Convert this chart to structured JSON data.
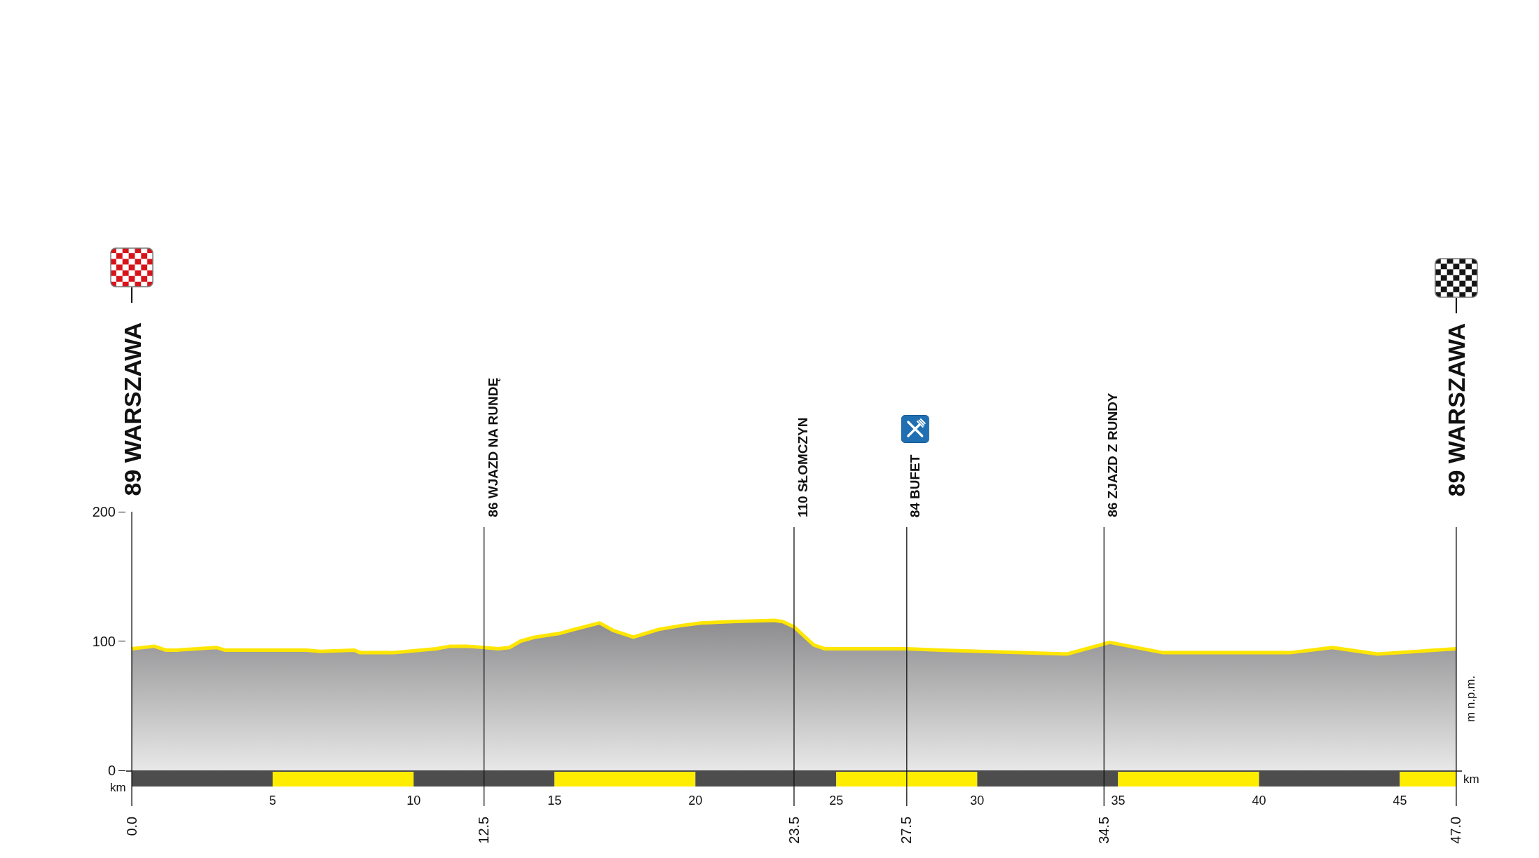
{
  "chart_data": {
    "type": "area",
    "ylabel": "m n.p.m.",
    "x2label": "km",
    "x": [
      0,
      0.8,
      1.2,
      1.6,
      3.0,
      3.3,
      4.3,
      6.2,
      6.7,
      7.9,
      8.1,
      8.8,
      9.3,
      10.8,
      11.3,
      11.9,
      12.5,
      13.0,
      13.4,
      13.8,
      14.3,
      15.2,
      15.7,
      16.6,
      17.1,
      17.8,
      18.7,
      19.5,
      20.2,
      21.3,
      22.8,
      23.1,
      23.5,
      23.9,
      24.2,
      24.6,
      27.5,
      28.7,
      33.2,
      34.7,
      36.6,
      41.1,
      42.6,
      44.2,
      47
    ],
    "series": [
      {
        "color": "#8c8c8e",
        "values": [
          94,
          96,
          93,
          93,
          95,
          93,
          93,
          93,
          92,
          93,
          91,
          91,
          91,
          94,
          96,
          96,
          95,
          94,
          95,
          100,
          103,
          106,
          109,
          114,
          108,
          103,
          109,
          112,
          114,
          115,
          116,
          115,
          111,
          103,
          97,
          94,
          94,
          93,
          90,
          99,
          91,
          91,
          95,
          90,
          94
        ]
      }
    ],
    "xlim": [
      -0.2,
      47.2
    ],
    "xticks": [
      {
        "value": 0,
        "label": "0.0"
      },
      12.5,
      23.5,
      27.5,
      34.5,
      {
        "value": 47,
        "label": "47.0"
      }
    ],
    "x2lim": [
      -0.2,
      47.2
    ],
    "x2ticks": [
      5,
      10,
      15,
      20,
      25,
      30,
      35,
      40,
      45
    ],
    "ylim": [
      0,
      200
    ],
    "yticks": [
      0,
      100,
      200
    ],
    "ref_lines": [
      {
        "axis": "x",
        "value": 0,
        "label": "89 WARSZAWA"
      },
      {
        "axis": "x",
        "value": 12.5,
        "label": "86 WJAZD NA RUNDĘ"
      },
      {
        "axis": "x",
        "value": 23.5,
        "label": "110 SŁOMCZYN"
      },
      {
        "axis": "x",
        "value": 27.5,
        "label": "84 BUFET"
      },
      {
        "axis": "x",
        "value": 34.5,
        "label": "86 ZJAZD Z RUNDY"
      },
      {
        "axis": "x",
        "value": 47,
        "label": "89 WARSZAWA"
      }
    ]
  }
}
